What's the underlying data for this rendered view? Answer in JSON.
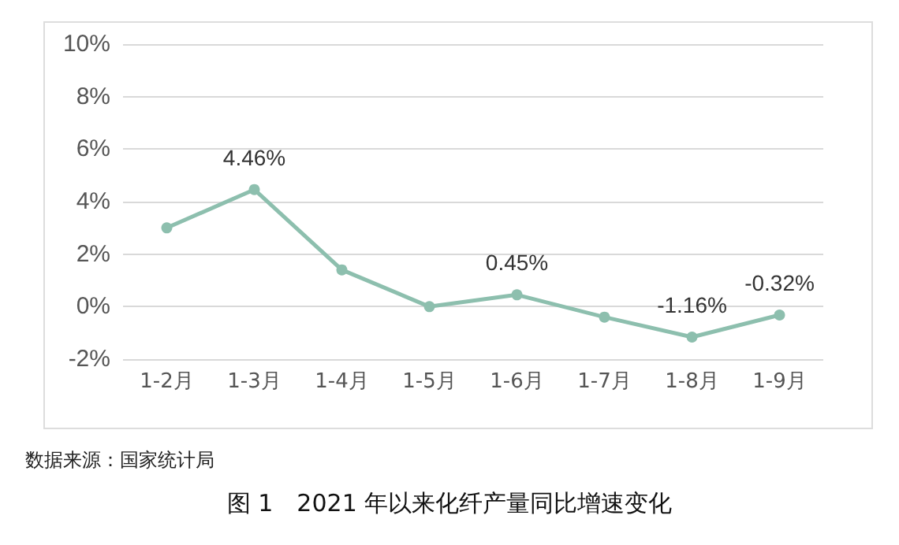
{
  "chart_data": {
    "type": "line",
    "title": "图 1　2021 年以来化纤产量同比增速变化",
    "annotations": [
      "数据来源：国家统计局"
    ],
    "categories": [
      "1-2月",
      "1-3月",
      "1-4月",
      "1-5月",
      "1-6月",
      "1-7月",
      "1-8月",
      "1-9月"
    ],
    "series": [
      {
        "color": "#8dbfae",
        "values": [
          3.0,
          4.46,
          1.4,
          0.0,
          0.45,
          -0.4,
          -1.16,
          -0.32
        ],
        "value_labels": [
          null,
          "4.46%",
          null,
          null,
          "0.45%",
          null,
          "-1.16%",
          "-0.32%"
        ]
      }
    ],
    "ylim": [
      -2,
      10
    ],
    "yticks": [
      {
        "value": -2,
        "label": "-2%"
      },
      {
        "value": 0,
        "label": "0%"
      },
      {
        "value": 2,
        "label": "2%"
      },
      {
        "value": 4,
        "label": "4%"
      },
      {
        "value": 6,
        "label": "6%"
      },
      {
        "value": 8,
        "label": "8%"
      },
      {
        "value": 10,
        "label": "10%"
      }
    ],
    "grid": "y",
    "marker": "circle",
    "line_style": "solid"
  }
}
